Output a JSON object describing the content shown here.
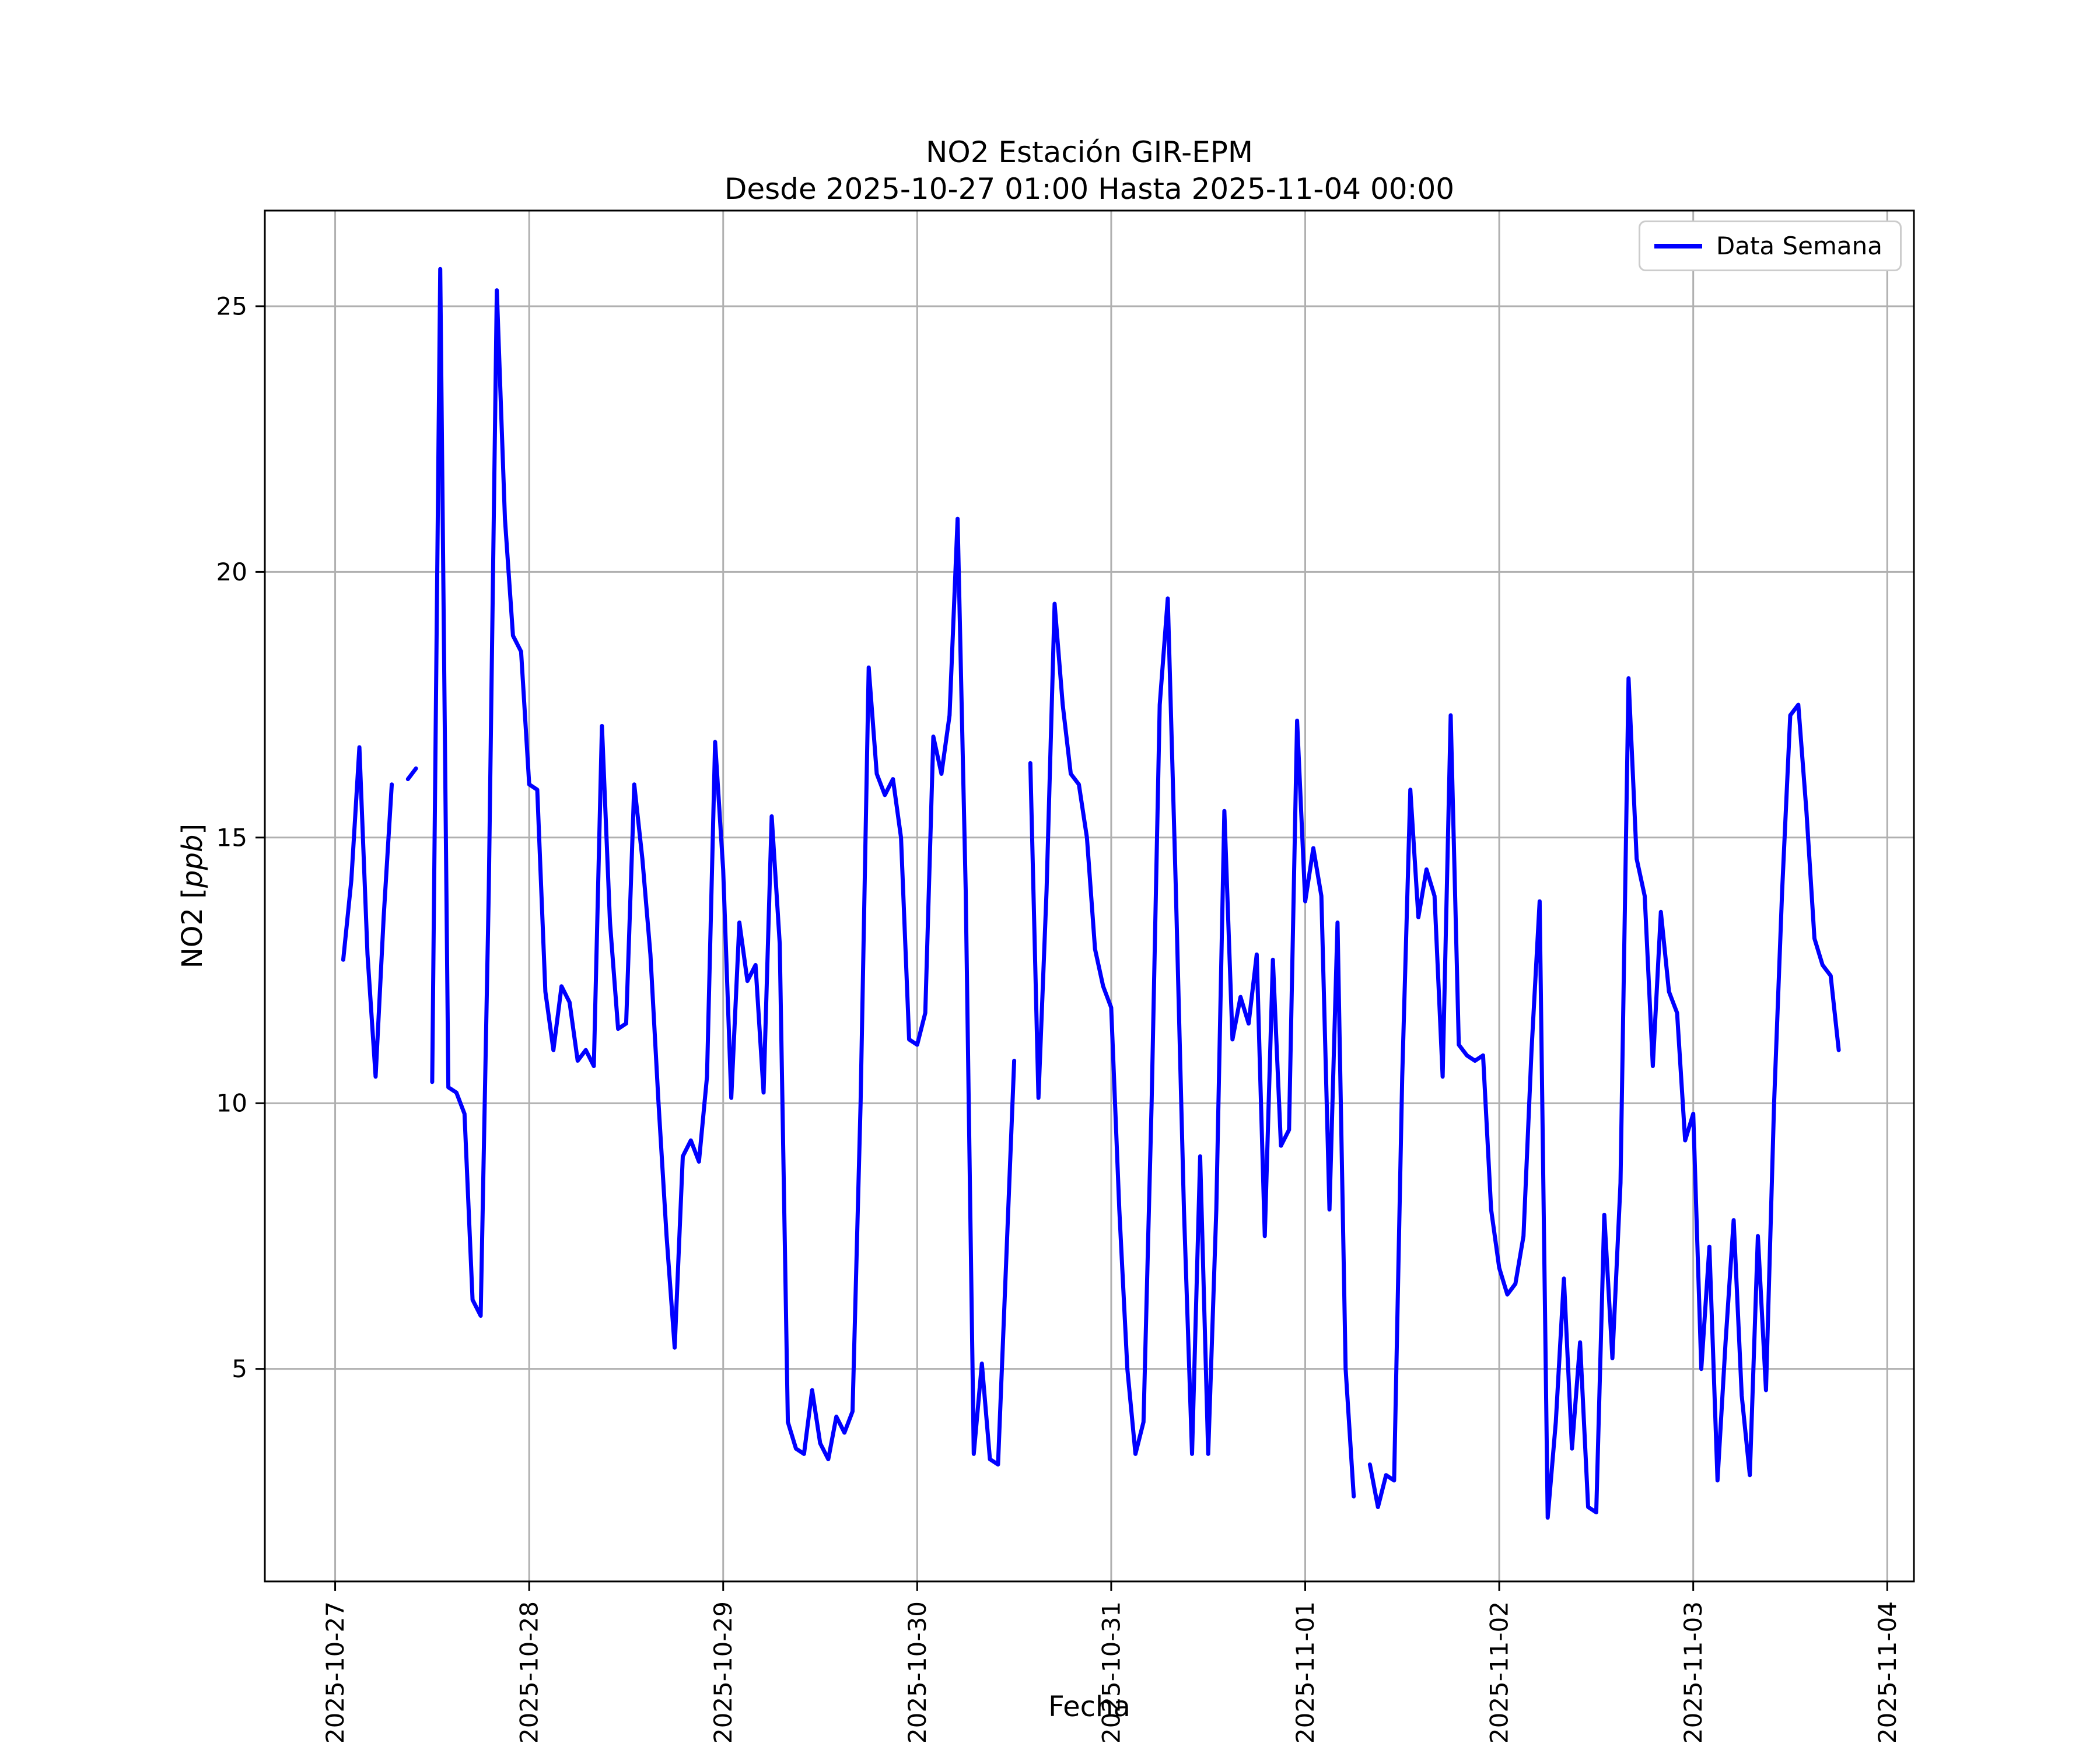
{
  "title": {
    "line1": "NO2 Estación GIR-EPM",
    "line2": "Desde 2025-10-27 01:00 Hasta 2025-11-04 00:00"
  },
  "axes": {
    "xlabel": "Fecha",
    "ylabel_pre": "NO2 [",
    "ylabel_italic": "ppb",
    "ylabel_post": "]"
  },
  "legend": {
    "label": "Data Semana"
  },
  "chart_data": {
    "type": "line",
    "title": "NO2 Estación GIR-EPM — Desde 2025-10-27 01:00 Hasta 2025-11-04 00:00",
    "series_name": "Data Semana",
    "color": "#0000ff",
    "grid": true,
    "legend_position": "upper right",
    "x_start": "2025-10-27 01:00",
    "x_step_hours": 1,
    "x_tick_labels": [
      "2025-10-27",
      "2025-10-28",
      "2025-10-29",
      "2025-10-30",
      "2025-10-31",
      "2025-11-01",
      "2025-11-02",
      "2025-11-03",
      "2025-11-04"
    ],
    "x_tick_hours": [
      0,
      24,
      48,
      72,
      96,
      120,
      144,
      168,
      192
    ],
    "y_ticks": [
      5,
      10,
      15,
      20,
      25
    ],
    "xlim_hours": [
      -8.7,
      195.3
    ],
    "ylim": [
      1.0,
      26.8
    ],
    "ylabel": "NO2 [ppb]",
    "xlabel": "Fecha",
    "values": [
      12.7,
      14.2,
      16.7,
      12.8,
      10.5,
      13.5,
      16.0,
      null,
      16.1,
      16.3,
      null,
      10.4,
      25.7,
      10.3,
      10.2,
      9.8,
      6.3,
      6.0,
      14.0,
      25.3,
      21.0,
      18.8,
      18.5,
      16.0,
      15.9,
      12.1,
      11.0,
      12.2,
      11.9,
      10.8,
      11.0,
      10.7,
      17.1,
      13.4,
      11.4,
      11.5,
      16.0,
      14.6,
      12.8,
      10.0,
      7.5,
      5.4,
      9.0,
      9.3,
      8.9,
      10.5,
      16.8,
      14.4,
      10.1,
      13.4,
      12.3,
      12.6,
      10.2,
      15.4,
      13.0,
      4.0,
      3.5,
      3.4,
      4.6,
      3.6,
      3.3,
      4.1,
      3.8,
      4.2,
      10.0,
      18.2,
      16.2,
      15.8,
      16.1,
      15.0,
      11.2,
      11.1,
      11.7,
      16.9,
      16.2,
      17.3,
      21.0,
      14.0,
      3.4,
      5.1,
      3.3,
      3.2,
      7.0,
      10.8,
      null,
      16.4,
      10.1,
      14.0,
      19.4,
      17.5,
      16.2,
      16.0,
      15.0,
      12.9,
      12.2,
      11.8,
      8.0,
      5.0,
      3.4,
      4.0,
      10.0,
      17.5,
      19.5,
      14.0,
      8.0,
      3.4,
      9.0,
      3.4,
      8.0,
      15.5,
      11.2,
      12.0,
      11.5,
      12.8,
      7.5,
      12.7,
      9.2,
      9.5,
      17.2,
      13.8,
      14.8,
      13.9,
      8.0,
      13.4,
      5.0,
      2.6,
      null,
      3.2,
      2.4,
      3.0,
      2.9,
      10.5,
      15.9,
      13.5,
      14.4,
      13.9,
      10.5,
      17.3,
      11.1,
      10.9,
      10.8,
      10.9,
      8.0,
      6.9,
      6.4,
      6.6,
      7.5,
      11.0,
      13.8,
      2.2,
      4.0,
      6.7,
      3.5,
      5.5,
      2.4,
      2.3,
      7.9,
      5.2,
      8.5,
      18.0,
      14.6,
      13.9,
      10.7,
      13.6,
      12.1,
      11.7,
      9.3,
      9.8,
      5.0,
      7.3,
      2.9,
      5.5,
      7.8,
      4.5,
      3.0,
      7.5,
      4.6,
      10.0,
      14.0,
      17.3,
      17.5,
      15.5,
      13.1,
      12.6,
      12.4,
      11.0,
      null,
      null,
      null,
      null,
      null,
      null
    ]
  }
}
